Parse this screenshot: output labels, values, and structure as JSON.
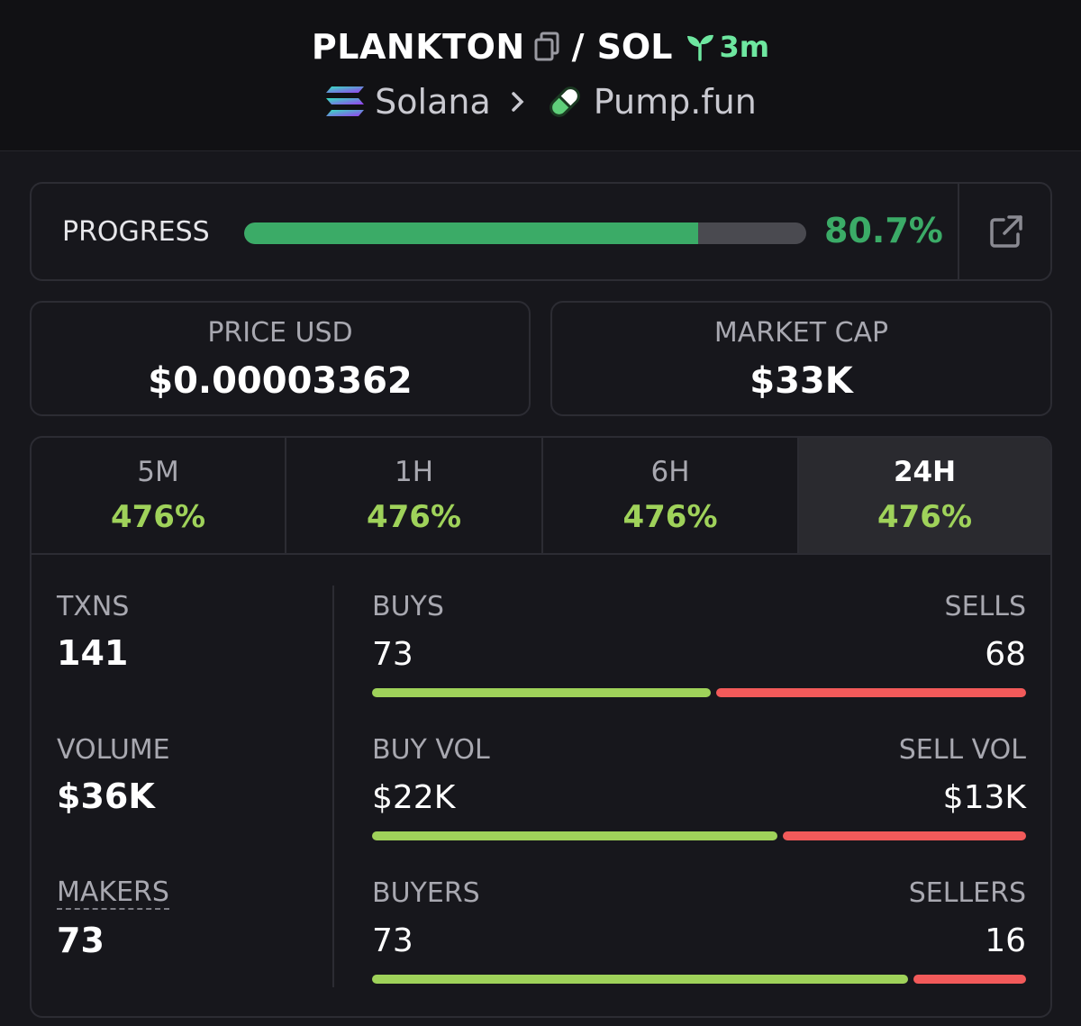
{
  "header": {
    "token_symbol": "PLANKTON",
    "quote_symbol": "SOL",
    "age": "3m",
    "chain": "Solana",
    "dex": "Pump.fun",
    "icons": {
      "copy": "copy-icon",
      "age": "seedling-icon",
      "chevron": "chevron-right-icon",
      "chain_logo": "solana-logo-icon",
      "dex_logo": "pill-icon"
    }
  },
  "progress": {
    "label": "PROGRESS",
    "value_text": "80.7%",
    "fraction": 0.807,
    "color": "#3bab67"
  },
  "stats": {
    "price_label": "PRICE USD",
    "price_value": "$0.00003362",
    "mcap_label": "MARKET CAP",
    "mcap_value": "$33K"
  },
  "tabs": [
    {
      "label": "5M",
      "value": "476%"
    },
    {
      "label": "1H",
      "value": "476%"
    },
    {
      "label": "6H",
      "value": "476%"
    },
    {
      "label": "24H",
      "value": "476%",
      "active": true
    }
  ],
  "metrics": {
    "txns_label": "TXNS",
    "txns_value": "141",
    "volume_label": "VOLUME",
    "volume_value": "$36K",
    "makers_label": "MAKERS",
    "makers_value": "73"
  },
  "pairs": [
    {
      "left_label": "BUYS",
      "right_label": "SELLS",
      "left_value": "73",
      "right_value": "68",
      "buy_fraction": 0.518
    },
    {
      "left_label": "BUY VOL",
      "right_label": "SELL VOL",
      "left_value": "$22K",
      "right_value": "$13K",
      "buy_fraction": 0.62
    },
    {
      "left_label": "BUYERS",
      "right_label": "SELLERS",
      "left_value": "73",
      "right_value": "16",
      "buy_fraction": 0.82
    }
  ],
  "colors": {
    "accent_green": "#9fd25a",
    "sell_red": "#f25a5a",
    "progress_green": "#3bab67"
  }
}
